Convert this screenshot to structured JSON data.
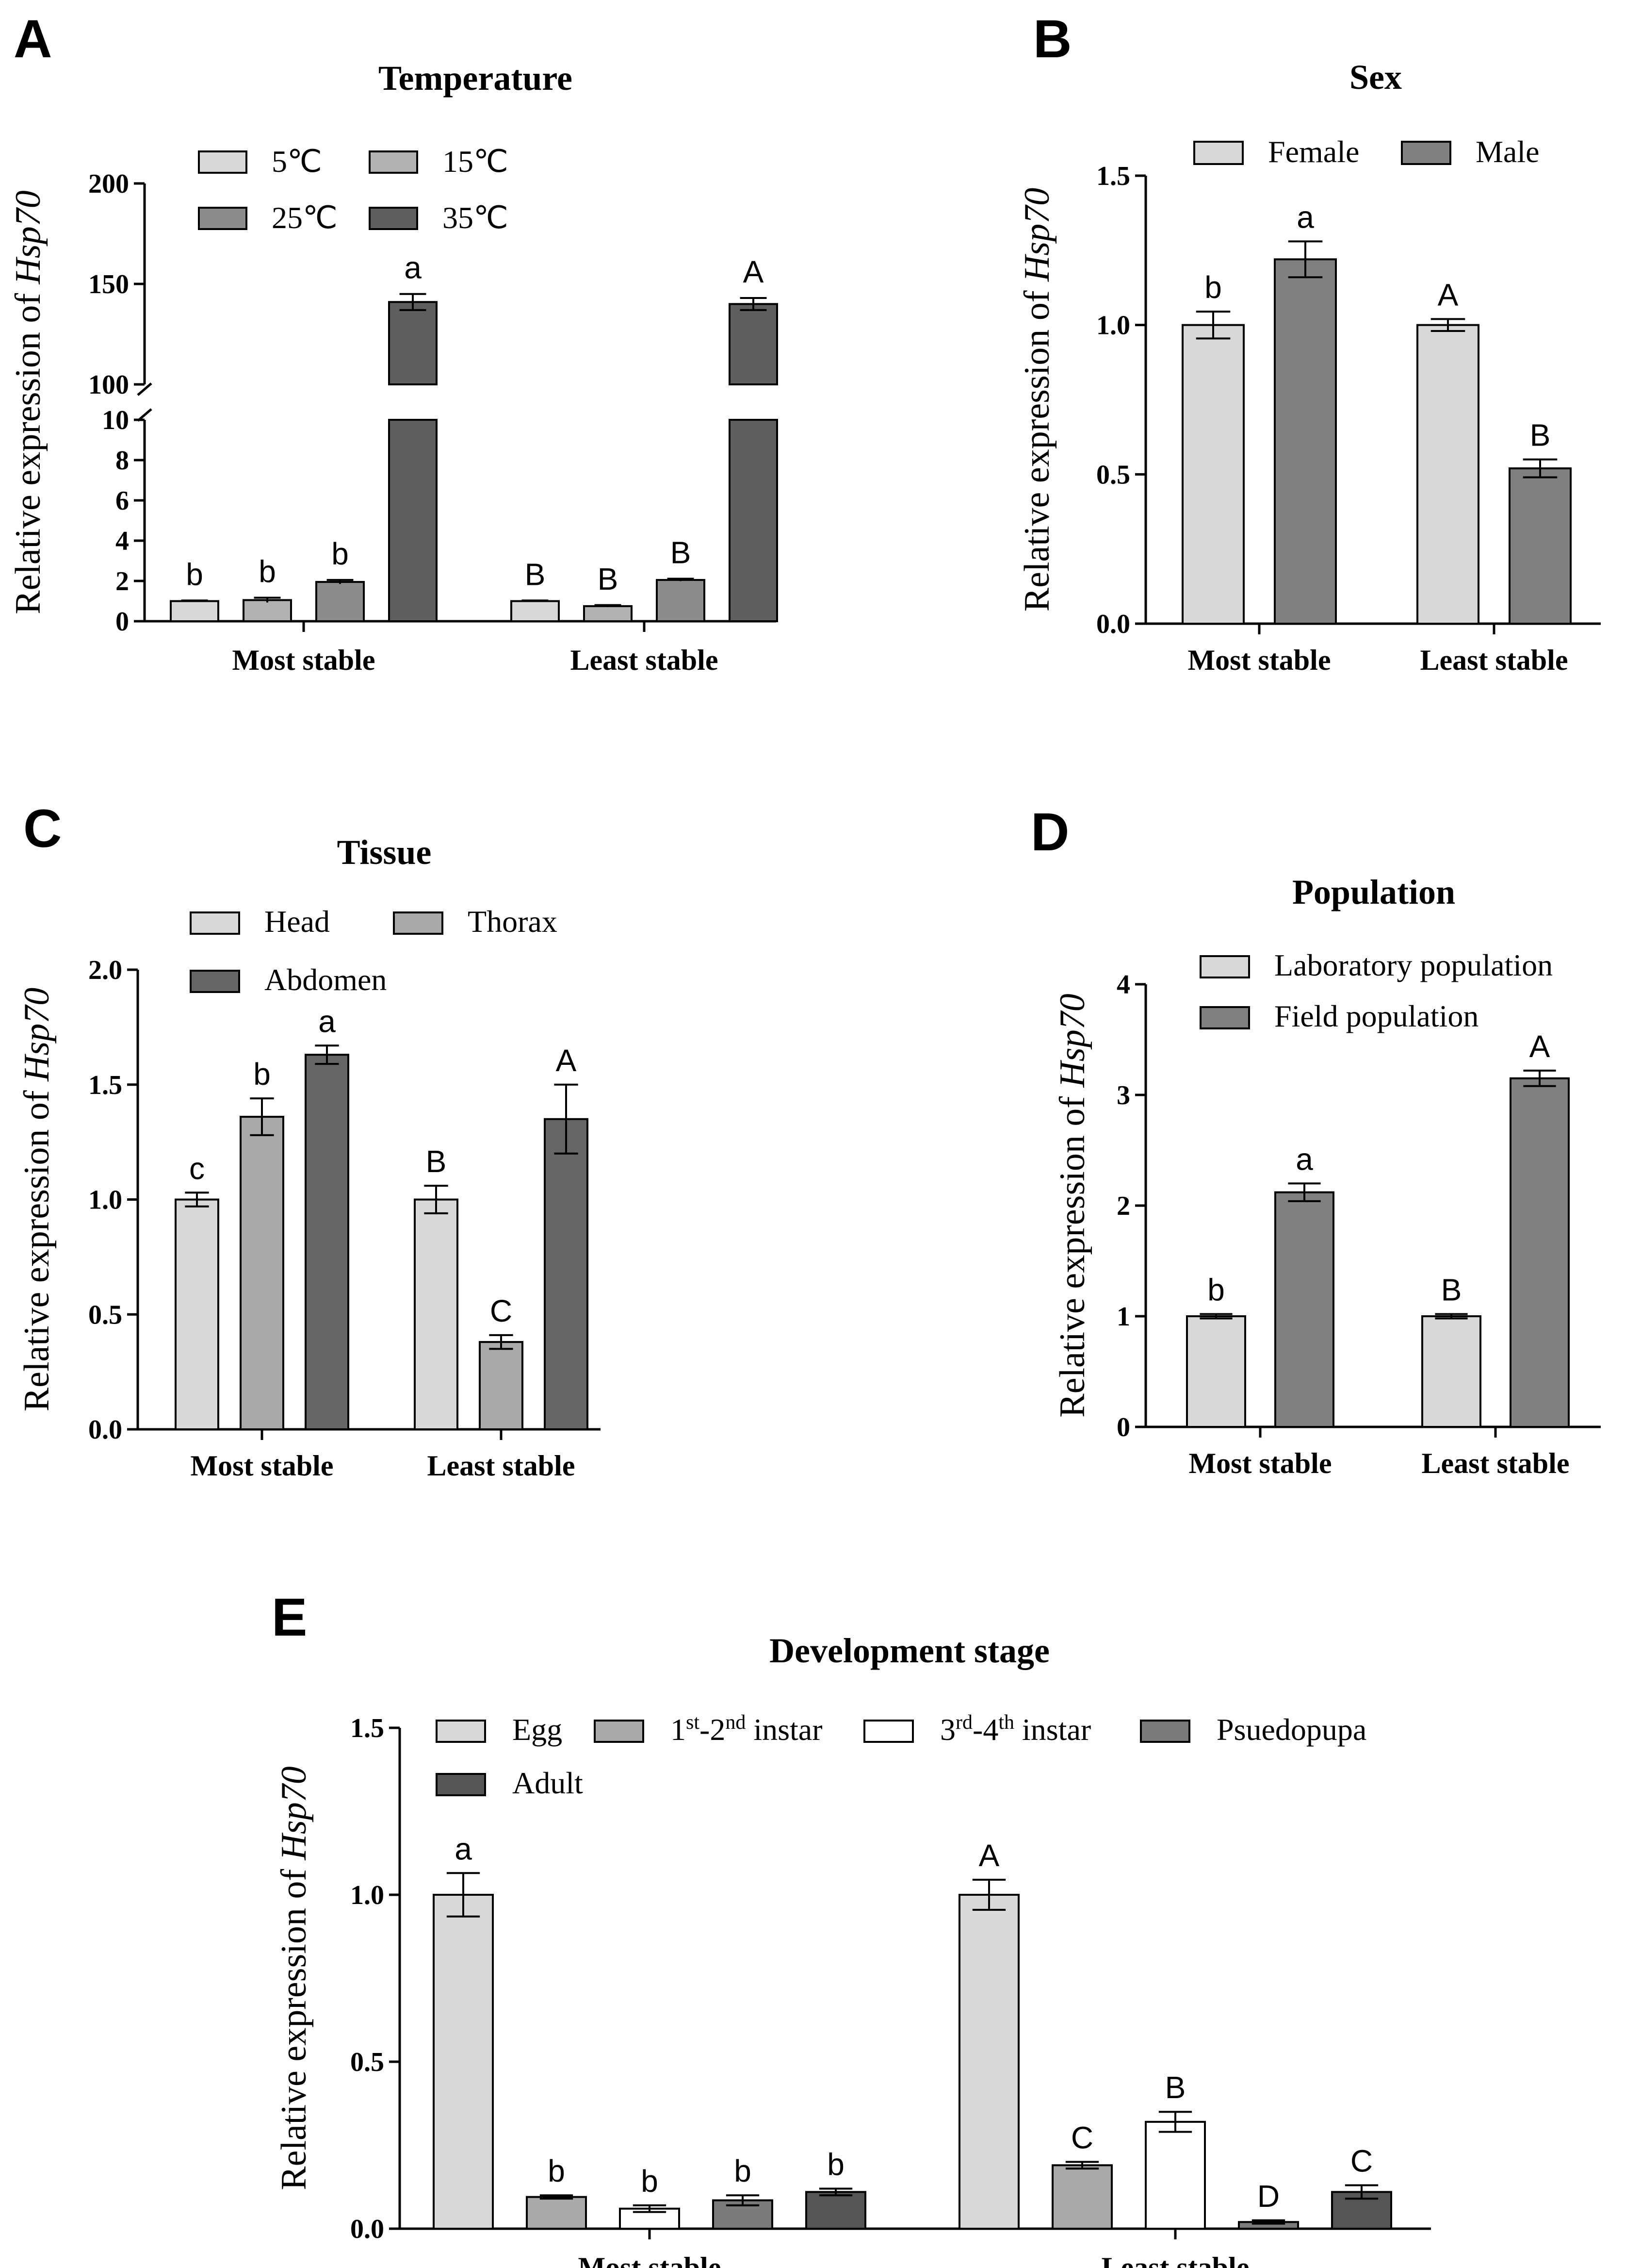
{
  "y_axis_label_prefix": "Relative expression of",
  "y_axis_label_gene": "Hsp70",
  "chart_data": [
    {
      "panel": "A",
      "type": "bar",
      "title": "Temperature",
      "categories": [
        "Most stable",
        "Least stable"
      ],
      "broken_axis": true,
      "lower_range": [
        0,
        10
      ],
      "lower_ticks": [
        "0",
        "2",
        "4",
        "6",
        "8",
        "10"
      ],
      "upper_range": [
        100,
        200
      ],
      "upper_ticks": [
        "100",
        "150",
        "200"
      ],
      "legend": [
        "5℃",
        "15℃",
        "25℃",
        "35℃"
      ],
      "series": [
        {
          "name": "5℃",
          "color": "#d8d8d8",
          "values": [
            1.0,
            1.0
          ],
          "errors": [
            0.03,
            0.03
          ],
          "letters": [
            "b",
            "B"
          ]
        },
        {
          "name": "15℃",
          "color": "#b2b2b2",
          "values": [
            1.05,
            0.75
          ],
          "errors": [
            0.12,
            0.05
          ],
          "letters": [
            "b",
            "B"
          ]
        },
        {
          "name": "25℃",
          "color": "#8c8c8c",
          "values": [
            1.95,
            2.05
          ],
          "errors": [
            0.1,
            0.06
          ],
          "letters": [
            "b",
            "B"
          ]
        },
        {
          "name": "35℃",
          "color": "#5e5e5e",
          "values": [
            141,
            140
          ],
          "errors": [
            4,
            3
          ],
          "letters": [
            "a",
            "A"
          ]
        }
      ]
    },
    {
      "panel": "B",
      "type": "bar",
      "title": "Sex",
      "categories": [
        "Most stable",
        "Least stable"
      ],
      "ylim": [
        0,
        1.5
      ],
      "ticks": [
        "0.0",
        "0.5",
        "1.0",
        "1.5"
      ],
      "tick_values": [
        0,
        0.5,
        1.0,
        1.5
      ],
      "legend": [
        "Female",
        "Male"
      ],
      "series": [
        {
          "name": "Female",
          "color": "#d8d8d8",
          "values": [
            1.0,
            1.0
          ],
          "errors": [
            0.045,
            0.02
          ],
          "letters": [
            "b",
            "A"
          ]
        },
        {
          "name": "Male",
          "color": "#808080",
          "values": [
            1.22,
            0.52
          ],
          "errors": [
            0.06,
            0.03
          ],
          "letters": [
            "a",
            "B"
          ]
        }
      ]
    },
    {
      "panel": "C",
      "type": "bar",
      "title": "Tissue",
      "categories": [
        "Most stable",
        "Least stable"
      ],
      "ylim": [
        0,
        2.0
      ],
      "ticks": [
        "0.0",
        "0.5",
        "1.0",
        "1.5",
        "2.0"
      ],
      "tick_values": [
        0,
        0.5,
        1.0,
        1.5,
        2.0
      ],
      "legend": [
        "Head",
        "Thorax",
        "Abdomen"
      ],
      "series": [
        {
          "name": "Head",
          "color": "#d8d8d8",
          "values": [
            1.0,
            1.0
          ],
          "errors": [
            0.03,
            0.06
          ],
          "letters": [
            "c",
            "B"
          ]
        },
        {
          "name": "Thorax",
          "color": "#a9a9a9",
          "values": [
            1.36,
            0.38
          ],
          "errors": [
            0.08,
            0.03
          ],
          "letters": [
            "b",
            "C"
          ]
        },
        {
          "name": "Abdomen",
          "color": "#666666",
          "values": [
            1.63,
            1.35
          ],
          "errors": [
            0.04,
            0.15
          ],
          "letters": [
            "a",
            "A"
          ]
        }
      ]
    },
    {
      "panel": "D",
      "type": "bar",
      "title": "Population",
      "categories": [
        "Most stable",
        "Least stable"
      ],
      "ylim": [
        0,
        4
      ],
      "ticks": [
        "0",
        "1",
        "2",
        "3",
        "4"
      ],
      "tick_values": [
        0,
        1,
        2,
        3,
        4
      ],
      "legend": [
        "Laboratory population",
        "Field population"
      ],
      "series": [
        {
          "name": "Laboratory population",
          "color": "#d8d8d8",
          "values": [
            1.0,
            1.0
          ],
          "errors": [
            0.02,
            0.02
          ],
          "letters": [
            "b",
            "B"
          ]
        },
        {
          "name": "Field population",
          "color": "#808080",
          "values": [
            2.12,
            3.15
          ],
          "errors": [
            0.08,
            0.07
          ],
          "letters": [
            "a",
            "A"
          ]
        }
      ]
    },
    {
      "panel": "E",
      "type": "bar",
      "title": "Development stage",
      "categories": [
        "Most stable",
        "Least stable"
      ],
      "ylim": [
        0,
        1.5
      ],
      "ticks": [
        "0.0",
        "0.5",
        "1.0",
        "1.5"
      ],
      "tick_values": [
        0,
        0.5,
        1.0,
        1.5
      ],
      "legend": [
        "Egg",
        "1st-2nd instar",
        "3rd-4th instar",
        "Psuedopupa",
        "Adult"
      ],
      "series": [
        {
          "name": "Egg",
          "color": "#d8d8d8",
          "values": [
            1.0,
            1.0
          ],
          "errors": [
            0.065,
            0.045
          ],
          "letters": [
            "a",
            "A"
          ]
        },
        {
          "name": "1st-2nd instar",
          "color": "#a9a9a9",
          "values": [
            0.095,
            0.19
          ],
          "errors": [
            0.005,
            0.01
          ],
          "letters": [
            "b",
            "C"
          ]
        },
        {
          "name": "3rd-4th instar",
          "color": "#ffffff",
          "values": [
            0.06,
            0.32
          ],
          "errors": [
            0.01,
            0.03
          ],
          "letters": [
            "b",
            "B"
          ]
        },
        {
          "name": "Psuedopupa",
          "color": "#7a7a7a",
          "values": [
            0.085,
            0.02
          ],
          "errors": [
            0.015,
            0.005
          ],
          "letters": [
            "b",
            "D"
          ]
        },
        {
          "name": "Adult",
          "color": "#555555",
          "values": [
            0.11,
            0.11
          ],
          "errors": [
            0.01,
            0.02
          ],
          "letters": [
            "b",
            "C"
          ]
        }
      ]
    }
  ]
}
